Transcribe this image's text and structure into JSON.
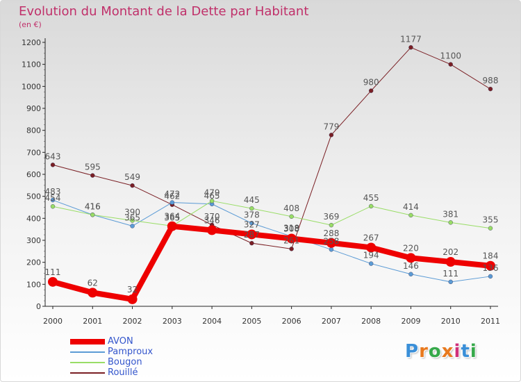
{
  "header": {
    "title": "Evolution du Montant de la Dette par Habitant",
    "subtitle": "(en €)"
  },
  "logo": {
    "text": "Proxiti",
    "colors": [
      "#3a8fd8",
      "#e8791e",
      "#36a94a",
      "#e8791e",
      "#d0307a",
      "#3a8fd8",
      "#36a94a"
    ]
  },
  "chart_data": {
    "type": "line",
    "x": [
      "2000",
      "2001",
      "2002",
      "2003",
      "2004",
      "2005",
      "2006",
      "2007",
      "2008",
      "2009",
      "2010",
      "2011"
    ],
    "ylim": [
      0,
      1200
    ],
    "yticks": [
      0,
      100,
      200,
      300,
      400,
      500,
      600,
      700,
      800,
      900,
      1000,
      1100,
      1200
    ],
    "grid": false,
    "legend_position": "bottom-left",
    "series": [
      {
        "name": "Rouillé",
        "color": "#7a1f24",
        "stroke": 1,
        "marker": 3,
        "values": [
          643,
          595,
          549,
          462,
          370,
          287,
          261,
          779,
          980,
          1177,
          1100,
          988
        ],
        "labels": [
          "643",
          "595",
          "549",
          "462",
          "370",
          "287",
          "261",
          "779",
          "980",
          "1177",
          "1100",
          "988"
        ]
      },
      {
        "name": "Pamproux",
        "color": "#5b9bd5",
        "stroke": 1,
        "marker": 3,
        "values": [
          483,
          416,
          365,
          472,
          465,
          378,
          318,
          258,
          194,
          146,
          111,
          136
        ],
        "labels": [
          "483",
          "416",
          "365",
          "472",
          "465",
          "378",
          "318",
          "258",
          "194",
          "146",
          "111",
          "136"
        ]
      },
      {
        "name": "Bougon",
        "color": "#99dd66",
        "stroke": 1,
        "marker": 3,
        "values": [
          454,
          416,
          390,
          365,
          479,
          445,
          408,
          369,
          455,
          414,
          381,
          355
        ],
        "labels": [
          "454",
          "416",
          "390",
          "365",
          "479",
          "445",
          "408",
          "369",
          "455",
          "414",
          "381",
          "355"
        ]
      },
      {
        "name": "AVON",
        "color": "#ee0000",
        "stroke": 8,
        "marker": 7,
        "values": [
          111,
          62,
          32,
          364,
          346,
          327,
          308,
          288,
          267,
          220,
          202,
          184
        ],
        "labels": [
          "111",
          "62",
          "32",
          "364",
          "346",
          "327",
          "308",
          "288",
          "267",
          "220",
          "202",
          "184"
        ]
      }
    ],
    "legend_order": [
      "AVON",
      "Pamproux",
      "Bougon",
      "Rouillé"
    ]
  }
}
